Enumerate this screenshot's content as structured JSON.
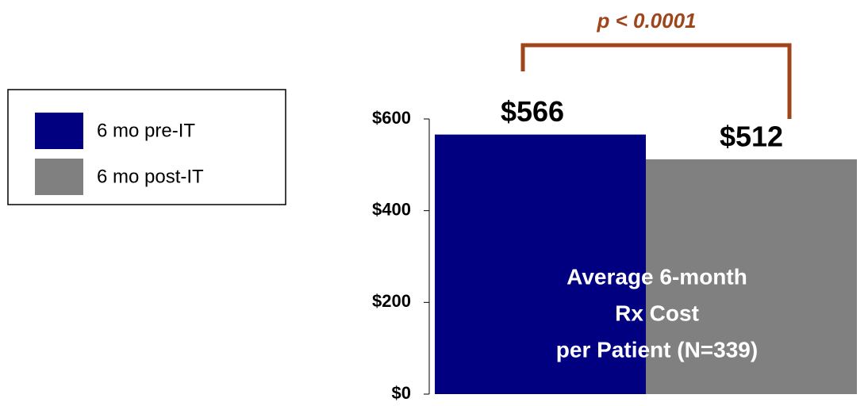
{
  "chart_data": {
    "type": "bar",
    "categories": [
      null
    ],
    "series": [
      {
        "name": "6 mo pre-IT",
        "color": "#000080",
        "values": [
          566
        ],
        "value_labels": [
          "$566"
        ]
      },
      {
        "name": "6 mo post-IT",
        "color": "#808080",
        "values": [
          512
        ],
        "value_labels": [
          "$512"
        ]
      }
    ],
    "ylim": [
      0,
      600
    ],
    "yticks": [
      {
        "value": 0,
        "label": "$0"
      },
      {
        "value": 200,
        "label": "$200"
      },
      {
        "value": 400,
        "label": "$400"
      },
      {
        "value": 600,
        "label": "$600"
      }
    ],
    "annotations": {
      "p_value": "p < 0.0001",
      "description": [
        "Average 6-month",
        "Rx  Cost",
        "per Patient (N=339)"
      ],
      "annotation_color": "#a0441a"
    },
    "legend": "left"
  }
}
